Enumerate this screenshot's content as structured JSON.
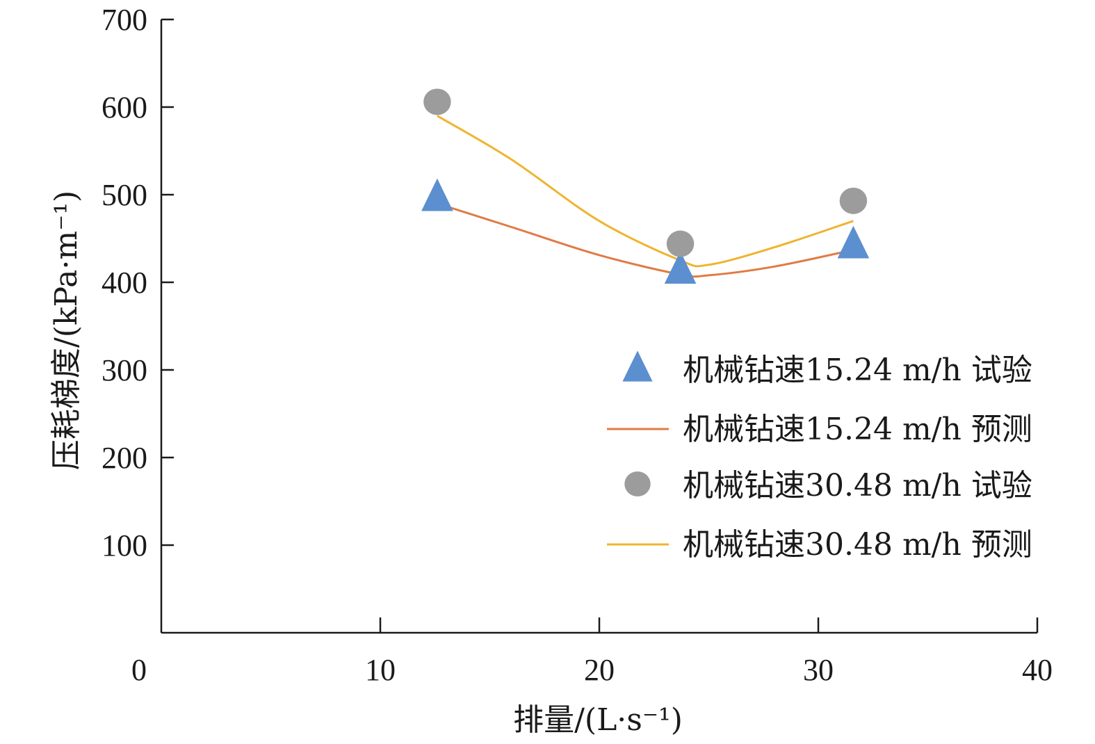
{
  "chart_data": {
    "type": "scatter",
    "xlabel": "排量/(L·s⁻¹)",
    "ylabel": "压耗梯度/(kPa·m⁻¹)",
    "xlim": [
      0,
      40
    ],
    "ylim": [
      0,
      700
    ],
    "x_ticks": [
      "0",
      "10",
      "20",
      "30",
      "40"
    ],
    "y_ticks": [
      "100",
      "200",
      "300",
      "400",
      "500",
      "600",
      "700"
    ],
    "x_tick_values": [
      0,
      10,
      20,
      30,
      40
    ],
    "y_tick_values": [
      100,
      200,
      300,
      400,
      500,
      600,
      700
    ],
    "grid": false,
    "legend_position": "right",
    "series": [
      {
        "name": "机械钻速15.24 m/h 试验",
        "kind": "points",
        "marker": "triangle",
        "color": "#5b8fcf",
        "x": [
          12.6,
          23.7,
          31.6
        ],
        "y": [
          497,
          414,
          443
        ]
      },
      {
        "name": "机械钻速15.24 m/h 预测",
        "kind": "line",
        "color": "#e07b43",
        "x": [
          12.6,
          16,
          20,
          23.7,
          25,
          28,
          31.6
        ],
        "y": [
          490,
          463,
          431,
          409,
          408,
          418,
          437
        ]
      },
      {
        "name": "机械钻速30.48 m/h 试验",
        "kind": "points",
        "marker": "circle",
        "color": "#9c9c9c",
        "x": [
          12.6,
          23.7,
          31.6
        ],
        "y": [
          606,
          444,
          493
        ]
      },
      {
        "name": "机械钻速30.48 m/h 预测",
        "kind": "line",
        "color": "#efb42e",
        "x": [
          12.6,
          16,
          20,
          23.7,
          25,
          28,
          31.6
        ],
        "y": [
          590,
          540,
          470,
          425,
          420,
          440,
          470
        ]
      }
    ]
  }
}
